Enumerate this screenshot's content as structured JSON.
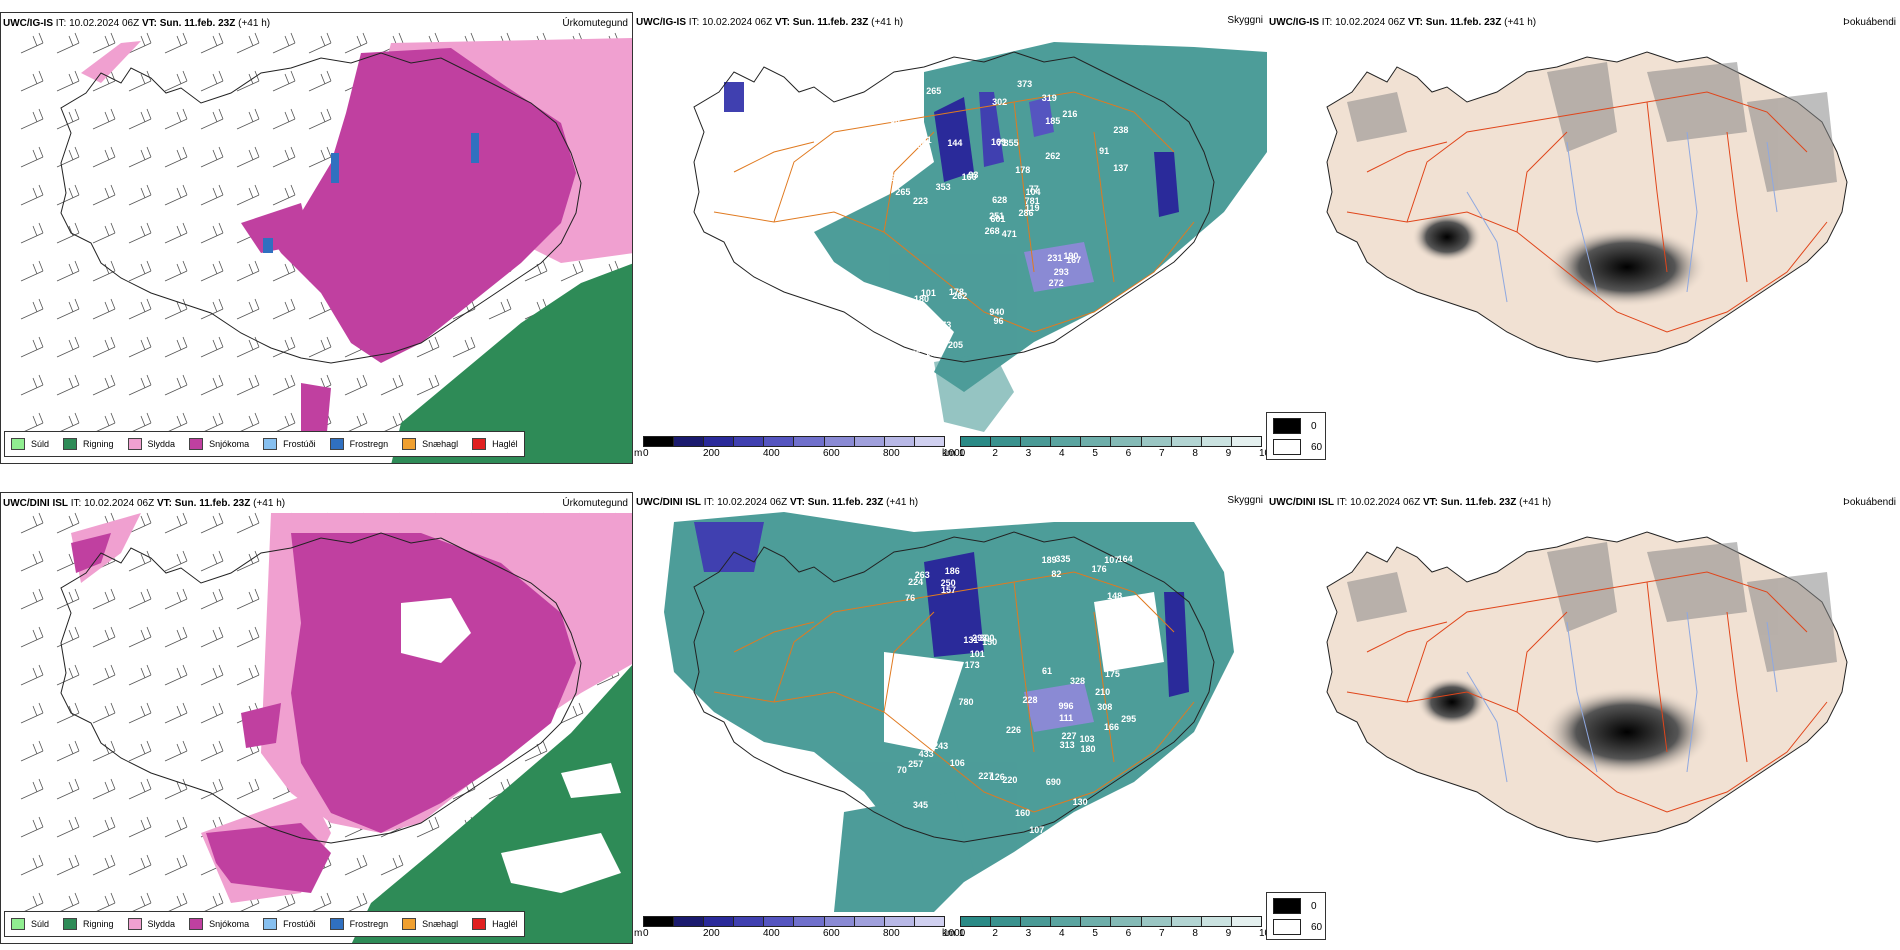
{
  "rows": [
    {
      "model": "UWC/IG-IS",
      "it_label": "IT:",
      "it_value": "10.02.2024 06Z",
      "vt_label": "VT:",
      "vt_value": "Sun. 11.feb. 23Z",
      "lead": "(+41 h)"
    },
    {
      "model": "UWC/DINI ISL",
      "it_label": "IT:",
      "it_value": "10.02.2024 06Z",
      "vt_label": "VT:",
      "vt_value": "Sun. 11.feb. 23Z",
      "lead": "(+41 h)"
    }
  ],
  "panel_titles": [
    "Úrkomutegund",
    "Skyggni",
    "Þokuábendi"
  ],
  "precip_legend": [
    {
      "label": "Súld",
      "color": "#90ee90"
    },
    {
      "label": "Rigning",
      "color": "#2e8b57"
    },
    {
      "label": "Slydda",
      "color": "#f0a0d0"
    },
    {
      "label": "Snjókoma",
      "color": "#c040a0"
    },
    {
      "label": "Frostúði",
      "color": "#87c0f0"
    },
    {
      "label": "Frostregn",
      "color": "#3070c0"
    },
    {
      "label": "Snæhagl",
      "color": "#f0a030"
    },
    {
      "label": "Haglél",
      "color": "#e02020"
    }
  ],
  "elevation_bar": {
    "unit": "m",
    "ticks": [
      "0",
      "200",
      "400",
      "600",
      "800",
      "1000"
    ],
    "colors": [
      "#000000",
      "#1a1a6e",
      "#2a2a9a",
      "#4040b0",
      "#5555c0",
      "#7070cc",
      "#8a8ad4",
      "#a0a0dc",
      "#b8b8e6",
      "#d0d0f0"
    ]
  },
  "visibility_bar": {
    "unit": "km",
    "ticks": [
      "1",
      "2",
      "3",
      "4",
      "5",
      "6",
      "7",
      "8",
      "9",
      "10"
    ],
    "colors": [
      "#2a8a86",
      "#3a928e",
      "#4a9a96",
      "#5aa4a0",
      "#6eaeaa",
      "#84bab6",
      "#9ac6c3",
      "#b2d4d2",
      "#cae2e0",
      "#e4f0ef"
    ]
  },
  "fog_legend": [
    {
      "label": "0",
      "color": "#000000"
    },
    {
      "label": "60",
      "color": "#ffffff"
    }
  ],
  "peaks_top": [
    "471",
    "550",
    "601",
    "229",
    "104",
    "262",
    "319",
    "355",
    "185",
    "286",
    "265",
    "300",
    "223",
    "238",
    "268",
    "262",
    "107",
    "169",
    "178",
    "101",
    "93",
    "137",
    "73",
    "71",
    "77",
    "167",
    "241",
    "302",
    "265",
    "231",
    "137",
    "251",
    "940",
    "628",
    "144",
    "216",
    "178",
    "222",
    "165",
    "190",
    "373",
    "160",
    "353",
    "272",
    "205",
    "191",
    "781",
    "376",
    "96",
    "119",
    "180",
    "91",
    "66",
    "293"
  ],
  "peaks_bottom": [
    "111",
    "308",
    "345",
    "186",
    "150",
    "130",
    "257",
    "82",
    "131",
    "107",
    "76",
    "222",
    "224",
    "215",
    "227",
    "175",
    "226",
    "228",
    "300",
    "243",
    "164",
    "176",
    "173",
    "166",
    "189",
    "250",
    "227",
    "211",
    "157",
    "328",
    "160",
    "690",
    "101",
    "780",
    "210",
    "180",
    "313",
    "205",
    "220",
    "433",
    "148",
    "335",
    "380",
    "126",
    "103",
    "106",
    "70",
    "263",
    "61",
    "221",
    "295",
    "293",
    "107",
    "996"
  ]
}
